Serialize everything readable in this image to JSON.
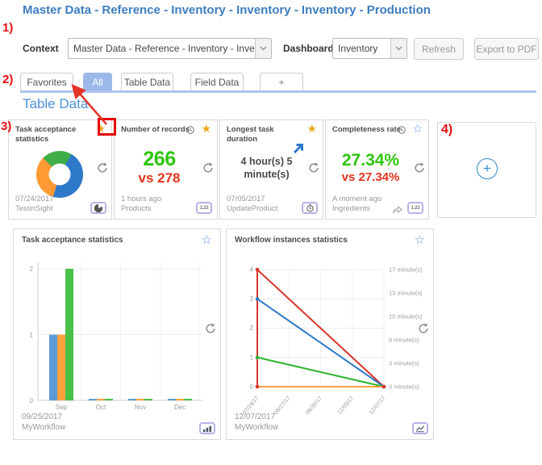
{
  "page_title": "Master Data - Reference - Inventory - Inventory - Inventory - Production",
  "annotations": {
    "n1": "1)",
    "n2": "2)",
    "n3": "3)",
    "n4": "4)"
  },
  "toolbar": {
    "context_label": "Context",
    "context_value": "Master Data - Reference - Inventory - Inventory",
    "dashboard_label": "Dashboard",
    "dashboard_value": "Inventory",
    "refresh_label": "Refresh",
    "export_label": "Export to PDF"
  },
  "tabs": [
    {
      "label": "Favorites",
      "active": false
    },
    {
      "label": "All",
      "active": true
    },
    {
      "label": "Table Data",
      "active": false
    },
    {
      "label": "Field Data",
      "active": false
    },
    {
      "label": "+",
      "active": false
    }
  ],
  "section_heading": "Table Data",
  "metric_colors": {
    "positive": "#2dc60d",
    "negative": "#e2331b"
  },
  "accent_colors": {
    "title_blue": "#3c7dc1",
    "heading_blue": "#4a90d9",
    "tab_active": "#9cb8e8",
    "star_gold": "#f2a71b",
    "star_blue": "#5f8fe8",
    "annotation_red": "#e30f0f",
    "add_button_blue": "#2b8ac9"
  },
  "cards": {
    "task_donut": {
      "title": "Task acceptance statistics",
      "date": "07/24/2017",
      "source": "TestinSight"
    },
    "records": {
      "title": "Number of records",
      "value": "266",
      "comparison": "vs 278",
      "updated": "1 hours ago",
      "source": "Products",
      "footer_icon_label": "1.23"
    },
    "duration": {
      "title": "Longest task duration",
      "value": "4 hour(s) 5 minute(s)",
      "date": "07/05/2017",
      "source": "UpdateProduct"
    },
    "completeness": {
      "title": "Completeness rate",
      "value": "27.34%",
      "comparison": "vs 27.34%",
      "updated": "A moment ago",
      "source": "Ingredients",
      "footer_icon_label": "1.23"
    },
    "task_bar": {
      "title": "Task acceptance statistics",
      "date": "09/25/2017",
      "source": "MyWorkflow"
    },
    "workflow_line": {
      "title": "Workflow instances statistics",
      "date": "12/07/2017",
      "source": "MyWorkflow"
    },
    "add": {
      "plus_label": "+"
    }
  },
  "chart_data": [
    {
      "type": "pie",
      "subtype": "donut",
      "title": "Task acceptance statistics",
      "slices": [
        {
          "label": "green",
          "value": 21,
          "color": "#3fae49"
        },
        {
          "label": "blue",
          "value": 46,
          "color": "#2e79c9"
        },
        {
          "label": "orange",
          "value": 33,
          "color": "#ff9934"
        }
      ],
      "legend": false
    },
    {
      "type": "bar",
      "title": "Task acceptance statistics",
      "categories": [
        "Sep",
        "Oct",
        "Nov",
        "Dec"
      ],
      "series": [
        {
          "name": "blue",
          "color": "#5b9bd5",
          "values": [
            1,
            0.02,
            0.02,
            0.02
          ]
        },
        {
          "name": "orange",
          "color": "#ffa13d",
          "values": [
            1,
            0.02,
            0.02,
            0.02
          ]
        },
        {
          "name": "green",
          "color": "#47c147",
          "values": [
            2,
            0.02,
            0.02,
            0.02
          ]
        }
      ],
      "xlabel": "",
      "ylabel": "",
      "ylim": [
        0,
        2
      ],
      "yticks": [
        0,
        1,
        2
      ],
      "grid": true,
      "legend": false
    },
    {
      "type": "line",
      "title": "Workflow instances statistics",
      "x": [
        "07/24/17",
        "08/27/17",
        "09/30/17",
        "11/03/17",
        "12/07/17"
      ],
      "left_yticks": [
        0,
        1,
        2,
        3,
        4
      ],
      "left_ylim": [
        0,
        4
      ],
      "right_axis_labels_top_to_bottom": [
        "17 minute(s)",
        "13 minute(s)",
        "10 minute(s)",
        "6 minute(s)",
        "3 minute(s)",
        "0 minute(s)"
      ],
      "series": [
        {
          "name": "red",
          "color": "#d8352b",
          "points": [
            [
              0,
              0
            ],
            [
              0,
              4
            ],
            [
              4,
              0
            ]
          ]
        },
        {
          "name": "blue",
          "color": "#2e79c9",
          "points": [
            [
              0,
              3
            ],
            [
              4,
              0
            ]
          ]
        },
        {
          "name": "green",
          "color": "#2fb52f",
          "points": [
            [
              0,
              1
            ],
            [
              4,
              0
            ]
          ]
        },
        {
          "name": "orange",
          "color": "#ffa13d",
          "points": [
            [
              0,
              0
            ],
            [
              4,
              0
            ]
          ]
        }
      ],
      "grid": true,
      "legend": false
    }
  ]
}
